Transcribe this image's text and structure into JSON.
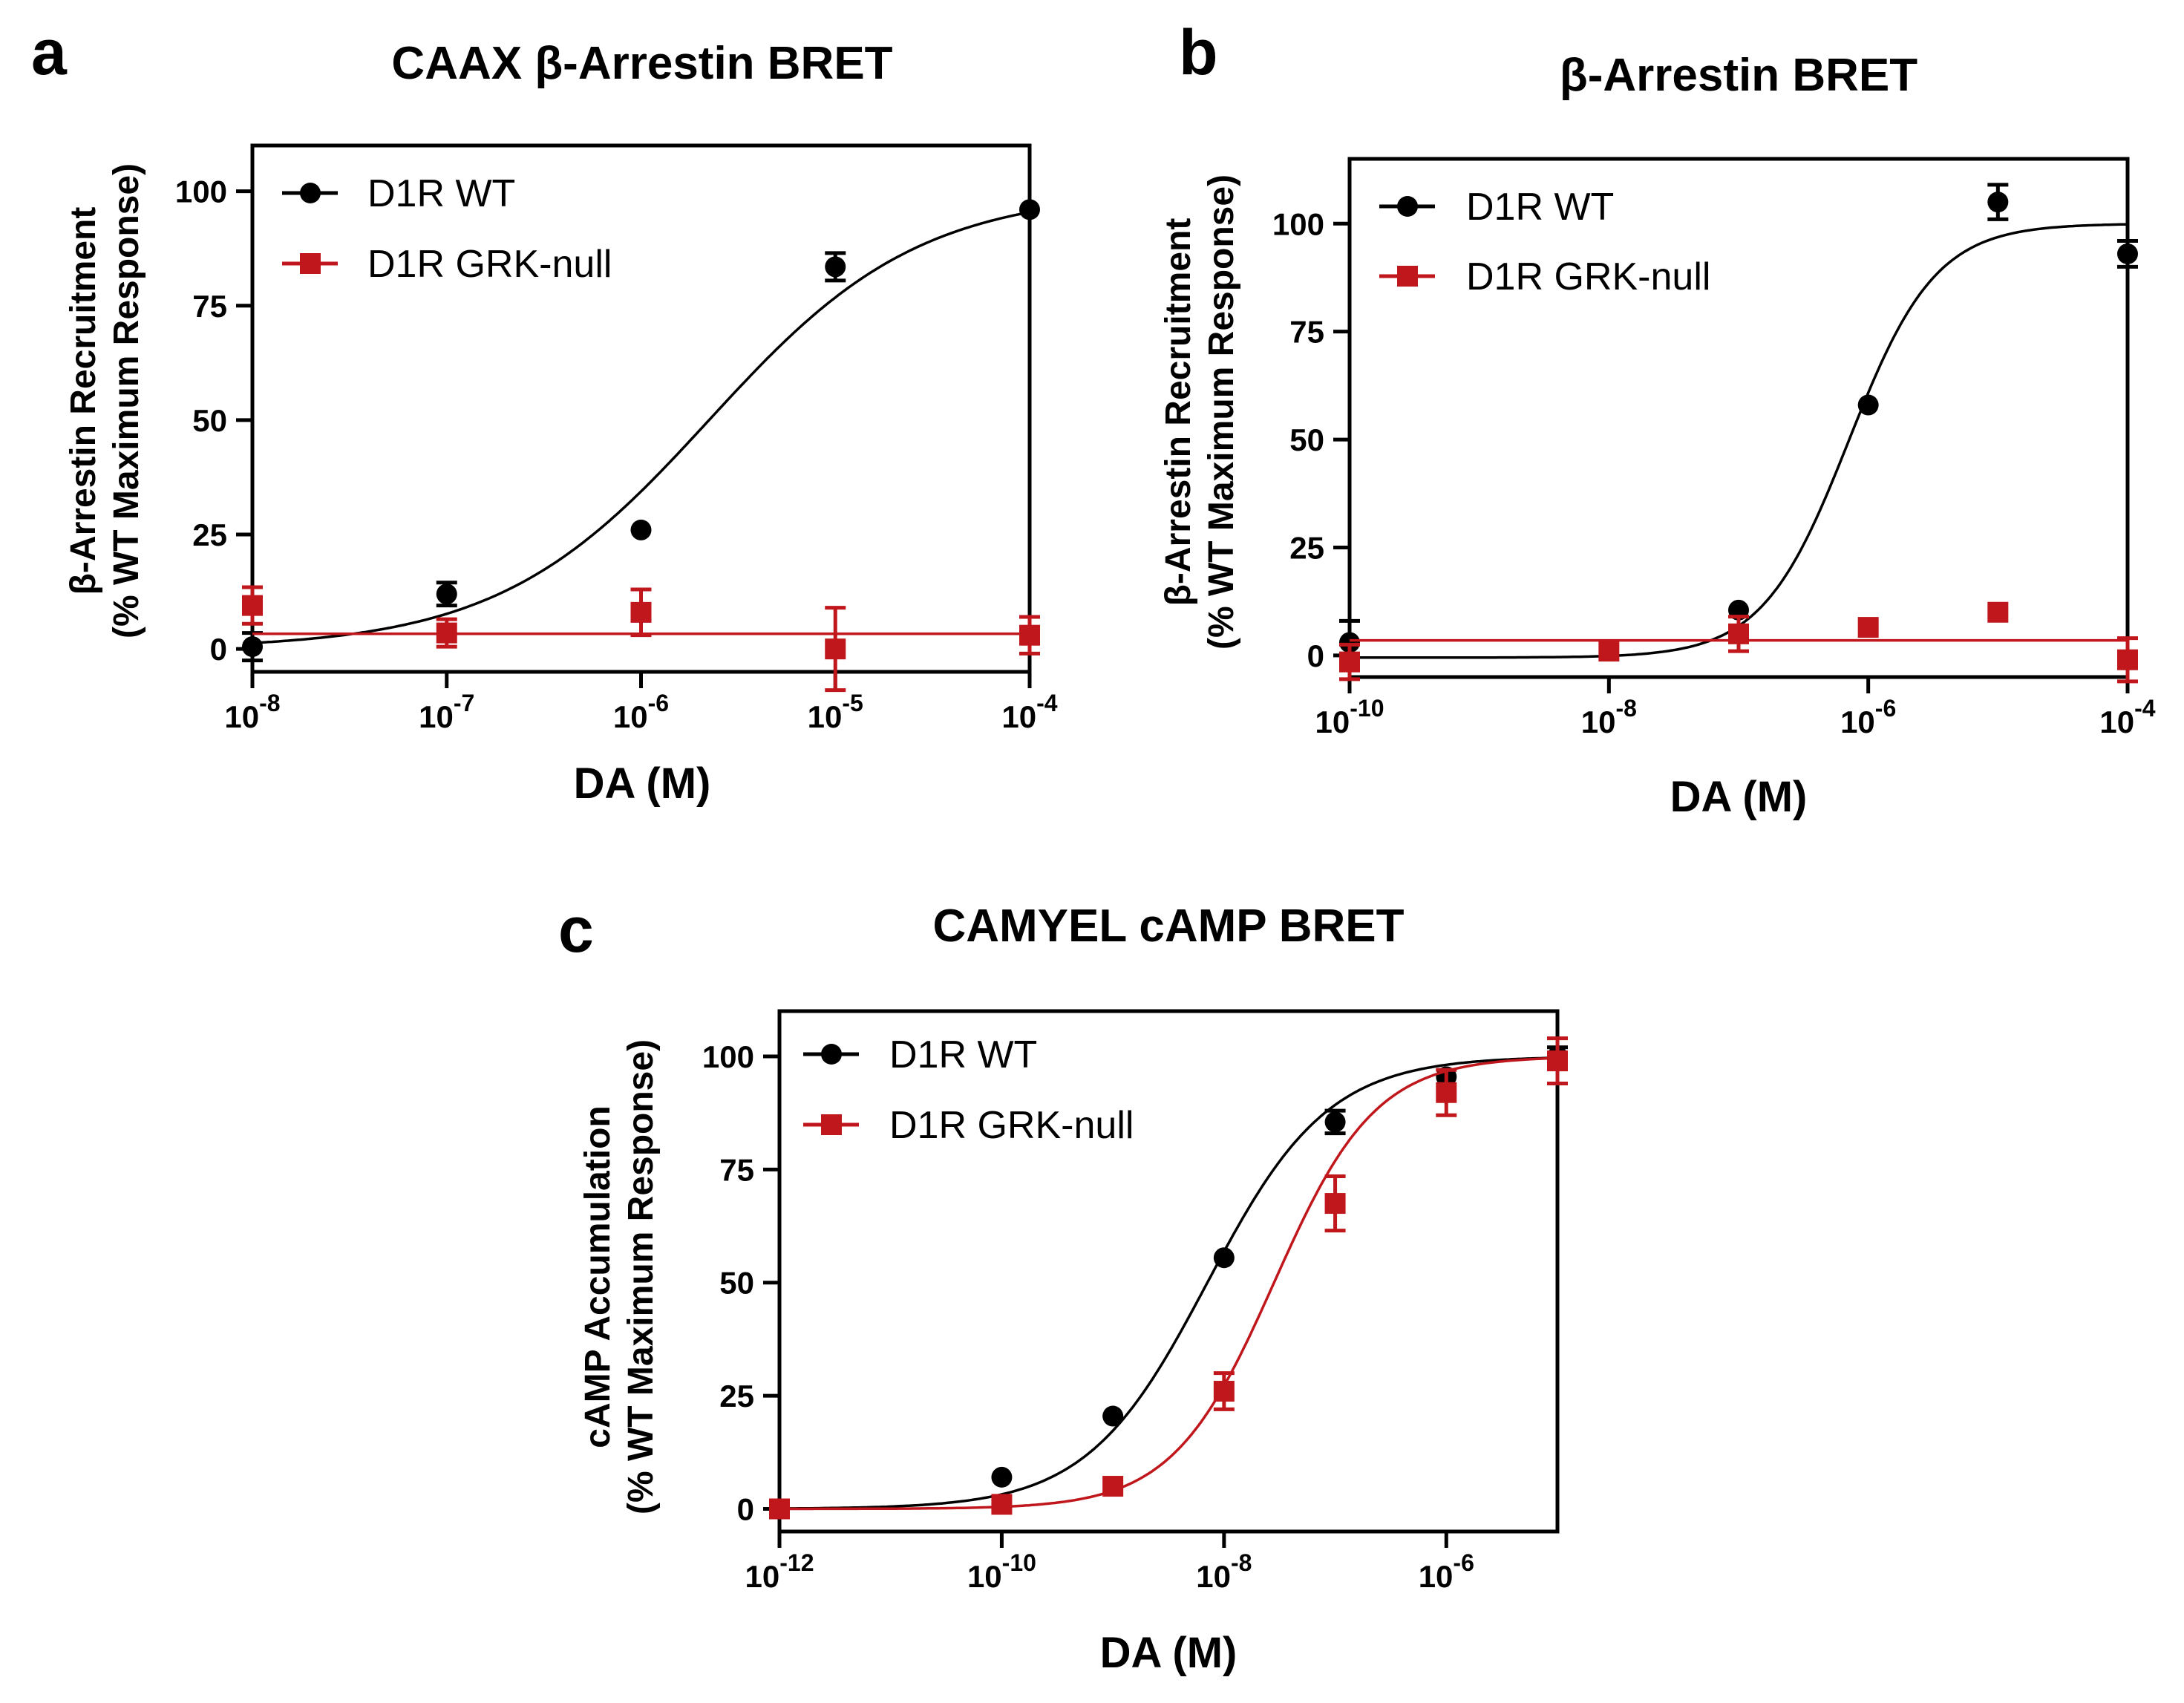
{
  "colors": {
    "wt": "#000000",
    "grk_null": "#c0171c",
    "axis": "#000000"
  },
  "panels": [
    {
      "letter": "a",
      "title": "CAAX β-Arrestin BRET",
      "ylabel_lines": [
        "β-Arrestin Recruitment",
        "(% WT Maximum Response)"
      ],
      "xlabel": "DA (M)"
    },
    {
      "letter": "b",
      "title": "β-Arrestin BRET",
      "ylabel_lines": [
        "β-Arrestin Recruitment",
        "(% WT Maximum Response)"
      ],
      "xlabel": "DA (M)"
    },
    {
      "letter": "c",
      "title": "CAMYEL cAMP BRET",
      "ylabel_lines": [
        "cAMP Accumulation",
        "(% WT Maximum Response)"
      ],
      "xlabel": "DA (M)"
    }
  ],
  "chart_data": [
    {
      "type": "scatter",
      "title": "CAAX β-Arrestin BRET",
      "xlabel": "DA (M)",
      "ylabel": "β-Arrestin Recruitment (% WT Maximum Response)",
      "x_scale": "log",
      "xlim": [
        1e-08,
        0.0001
      ],
      "ylim": [
        -5,
        110
      ],
      "xticks": [
        {
          "base": "10",
          "exp": "-8"
        },
        {
          "base": "10",
          "exp": "-7"
        },
        {
          "base": "10",
          "exp": "-6"
        },
        {
          "base": "10",
          "exp": "-5"
        },
        {
          "base": "10",
          "exp": "-4"
        }
      ],
      "yticks": [
        "0",
        "25",
        "50",
        "75",
        "100"
      ],
      "legend_position": "top-left",
      "series": [
        {
          "name": "D1R WT",
          "marker": "circle",
          "x": [
            1e-08,
            1e-07,
            1e-06,
            1e-05,
            0.0001
          ],
          "y": [
            0.5,
            12,
            26,
            83.5,
            96
          ],
          "err": [
            3,
            2.5,
            0,
            3,
            0
          ],
          "fit": {
            "bottom": 0,
            "top": 100,
            "log_ec50": -5.65,
            "hill": 0.8
          }
        },
        {
          "name": "D1R GRK-null",
          "marker": "square",
          "x": [
            1e-08,
            1e-07,
            1e-06,
            1e-05,
            0.0001
          ],
          "y": [
            9.5,
            3.5,
            8,
            0,
            3
          ],
          "err": [
            4,
            3,
            5,
            9,
            4
          ],
          "fit": {
            "flat": 3.3
          }
        }
      ]
    },
    {
      "type": "scatter",
      "title": "β-Arrestin BRET",
      "xlabel": "DA (M)",
      "ylabel": "β-Arrestin Recruitment (% WT Maximum Response)",
      "x_scale": "log",
      "xlim": [
        1e-10,
        0.0001
      ],
      "ylim": [
        -5,
        115
      ],
      "xticks": [
        {
          "base": "10",
          "exp": "-10"
        },
        {
          "base": "10",
          "exp": "-8"
        },
        {
          "base": "10",
          "exp": "-6"
        },
        {
          "base": "10",
          "exp": "-4"
        }
      ],
      "yticks": [
        "0",
        "25",
        "50",
        "75",
        "100"
      ],
      "legend_position": "top-left",
      "series": [
        {
          "name": "D1R WT",
          "marker": "circle",
          "x": [
            1e-10,
            1e-07,
            1e-06,
            1e-05,
            0.0001
          ],
          "y": [
            3,
            10.5,
            58,
            105,
            93
          ],
          "err": [
            5,
            0,
            0,
            4,
            3
          ],
          "fit": {
            "bottom": -0.5,
            "top": 100,
            "log_ec50": -6.15,
            "hill": 1.3
          }
        },
        {
          "name": "D1R GRK-null",
          "marker": "square",
          "x": [
            1e-10,
            1e-08,
            1e-07,
            1e-06,
            1e-05,
            0.0001
          ],
          "y": [
            -1.5,
            1,
            5,
            6.5,
            10,
            -1
          ],
          "err": [
            4,
            0,
            4,
            0,
            0,
            5
          ],
          "fit": {
            "flat": 3.5
          }
        }
      ]
    },
    {
      "type": "scatter",
      "title": "CAMYEL cAMP BRET",
      "xlabel": "DA (M)",
      "ylabel": "cAMP Accumulation (% WT Maximum Response)",
      "x_scale": "log",
      "xlim": [
        1e-12,
        1e-05
      ],
      "ylim": [
        -5,
        110
      ],
      "xticks": [
        {
          "base": "10",
          "exp": "-12"
        },
        {
          "base": "10",
          "exp": "-10"
        },
        {
          "base": "10",
          "exp": "-8"
        },
        {
          "base": "10",
          "exp": "-6"
        }
      ],
      "yticks": [
        "0",
        "25",
        "50",
        "75",
        "100"
      ],
      "legend_position": "top-left",
      "series": [
        {
          "name": "D1R WT",
          "marker": "circle",
          "x": [
            1e-12,
            1e-10,
            1e-09,
            1e-08,
            1e-07,
            1e-06,
            1e-05
          ],
          "y": [
            0,
            7,
            20.5,
            55.5,
            85.5,
            95.5,
            100
          ],
          "err": [
            0,
            0,
            0,
            0,
            2.5,
            0,
            2
          ],
          "fit": {
            "bottom": 0,
            "top": 100,
            "log_ec50": -8.15,
            "hill": 0.8
          }
        },
        {
          "name": "D1R GRK-null",
          "marker": "square",
          "x": [
            1e-12,
            1e-10,
            1e-09,
            1e-08,
            1e-07,
            1e-06,
            1e-05
          ],
          "y": [
            0,
            1,
            5,
            26,
            67.5,
            92,
            99
          ],
          "err": [
            0,
            0,
            0,
            4,
            6,
            5,
            5
          ],
          "fit": {
            "bottom": 0,
            "top": 100,
            "log_ec50": -7.55,
            "hill": 0.95
          }
        }
      ]
    }
  ]
}
